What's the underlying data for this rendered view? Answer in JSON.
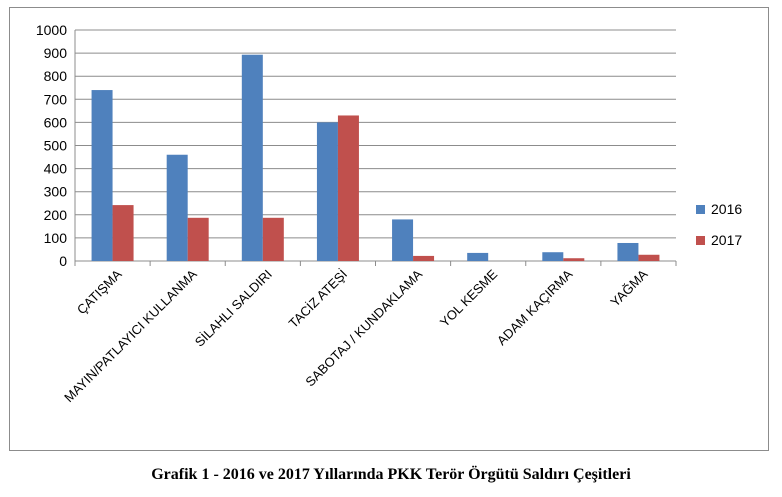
{
  "caption": "Grafik 1 - 2016 ve 2017 Yıllarında PKK Terör Örgütü Saldırı Çeşitleri",
  "chart_data": {
    "type": "bar",
    "categories": [
      "ÇATIŞMA",
      "MAYIN/PATLAYICI KULLANMA",
      "SİLAHLI SALDIRI",
      "TACİZ ATEŞİ",
      "SABOTAJ / KUNDAKLAMA",
      "YOL KESME",
      "ADAM KAÇIRMA",
      "YAĞMA"
    ],
    "series": [
      {
        "name": "2016",
        "color": "#4f81bd",
        "values": [
          740,
          460,
          893,
          600,
          180,
          35,
          38,
          78
        ]
      },
      {
        "name": "2017",
        "color": "#c0504d",
        "values": [
          242,
          187,
          187,
          630,
          22,
          0,
          12,
          27
        ]
      }
    ],
    "yticks": [
      0,
      100,
      200,
      300,
      400,
      500,
      600,
      700,
      800,
      900,
      1000
    ],
    "ylim": [
      0,
      1000
    ],
    "grid": true,
    "legend": "right"
  }
}
